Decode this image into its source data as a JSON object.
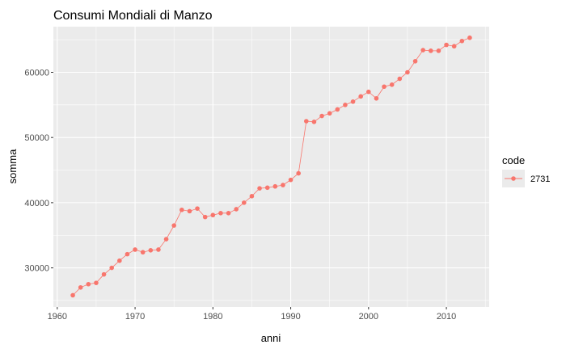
{
  "chart_data": {
    "type": "line",
    "title": "Consumi Mondiali di Manzo",
    "xlabel": "anni",
    "ylabel": "somma",
    "xlim": [
      1959.5,
      2015.5
    ],
    "ylim": [
      24000,
      67000
    ],
    "x_ticks": [
      1960,
      1970,
      1980,
      1990,
      2000,
      2010
    ],
    "x_tick_labels": [
      "1960",
      "1970",
      "1980",
      "1990",
      "2000",
      "2010"
    ],
    "y_ticks": [
      30000,
      40000,
      50000,
      60000
    ],
    "y_tick_labels": [
      "30000",
      "40000",
      "50000",
      "60000"
    ],
    "grid": true,
    "legend": {
      "title": "code",
      "placement": "right"
    },
    "series": [
      {
        "name": "2731",
        "color": "#f8766d",
        "x": [
          1962,
          1963,
          1964,
          1965,
          1966,
          1967,
          1968,
          1969,
          1970,
          1971,
          1972,
          1973,
          1974,
          1975,
          1976,
          1977,
          1978,
          1979,
          1980,
          1981,
          1982,
          1983,
          1984,
          1985,
          1986,
          1987,
          1988,
          1989,
          1990,
          1991,
          1992,
          1993,
          1994,
          1995,
          1996,
          1997,
          1998,
          1999,
          2000,
          2001,
          2002,
          2003,
          2004,
          2005,
          2006,
          2007,
          2008,
          2009,
          2010,
          2011,
          2012,
          2013
        ],
        "y": [
          25800,
          27000,
          27500,
          27700,
          29000,
          30000,
          31100,
          32100,
          32800,
          32400,
          32700,
          32800,
          34400,
          36500,
          38900,
          38700,
          39100,
          37800,
          38100,
          38400,
          38400,
          39000,
          40000,
          41000,
          42200,
          42300,
          42500,
          42700,
          43500,
          44500,
          52500,
          52400,
          53300,
          53700,
          54300,
          55000,
          55500,
          56300,
          57000,
          56000,
          57800,
          58100,
          59000,
          60000,
          61700,
          63400,
          63300,
          63300,
          64200,
          64000,
          64800,
          65300
        ]
      }
    ]
  },
  "colors": {
    "panel_bg": "#ebebeb",
    "grid_major": "#ffffff",
    "legend_key_bg": "#ebebeb"
  }
}
